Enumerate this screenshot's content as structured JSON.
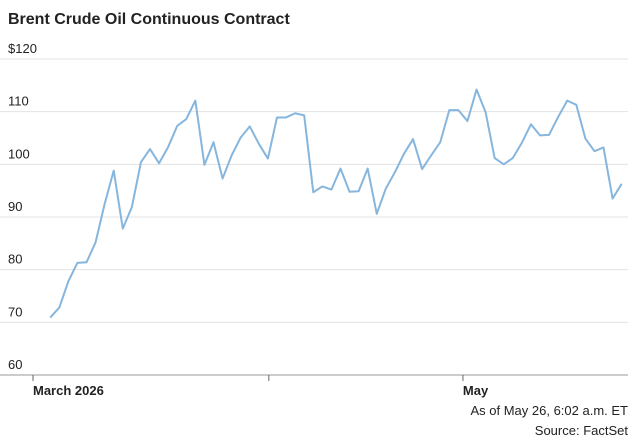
{
  "chart_data": {
    "type": "line",
    "title": "Brent Crude Oil Continuous Contract",
    "x": [
      0,
      1,
      2,
      3,
      4,
      5,
      6,
      7,
      8,
      9,
      10,
      11,
      12,
      13,
      14,
      15,
      16,
      17,
      18,
      19,
      20,
      21,
      22,
      23,
      24,
      25,
      26,
      27,
      28,
      29,
      30,
      31,
      32,
      33,
      34,
      35,
      36,
      37,
      38,
      39,
      40,
      41,
      42,
      43,
      44,
      45,
      46,
      47,
      48,
      49,
      50,
      51,
      52,
      53,
      54,
      55,
      56,
      57,
      58,
      59,
      60,
      61,
      62,
      63
    ],
    "series": [
      {
        "name": "Brent Crude Oil Continuous Contract",
        "color": "#86b6dd",
        "values": [
          70.9,
          72.8,
          77.8,
          81.3,
          81.4,
          85.2,
          92.5,
          98.8,
          87.8,
          91.9,
          100.4,
          102.9,
          100.2,
          103.3,
          107.3,
          108.6,
          112.1,
          99.9,
          104.2,
          97.3,
          101.7,
          105.1,
          107.2,
          103.9,
          101.1,
          108.9,
          108.9,
          109.7,
          109.3,
          94.7,
          95.8,
          95.2,
          99.2,
          94.8,
          94.9,
          99.2,
          90.6,
          95.4,
          98.5,
          102.0,
          104.8,
          99.1,
          101.7,
          104.2,
          110.3,
          110.3,
          108.2,
          114.2,
          109.9,
          101.2,
          100.0,
          101.2,
          104.1,
          107.6,
          105.5,
          105.6,
          109.0,
          112.1,
          111.3,
          104.9,
          102.5,
          103.2,
          93.5,
          96.3
        ]
      }
    ],
    "xlim": [
      -1.9,
      63.7
    ],
    "xticks": [
      -1.9,
      24.1,
      45.5
    ],
    "xtick_labels": [
      "March 2026",
      null,
      "May"
    ],
    "ylim": [
      60,
      120
    ],
    "yticks": [
      60,
      70,
      80,
      90,
      100,
      110,
      {
        "value": 120,
        "label": "$120"
      }
    ],
    "grid": true,
    "annotations": [
      "As of May 26, 6:02 a.m. ET",
      "Source: FactSet"
    ]
  }
}
